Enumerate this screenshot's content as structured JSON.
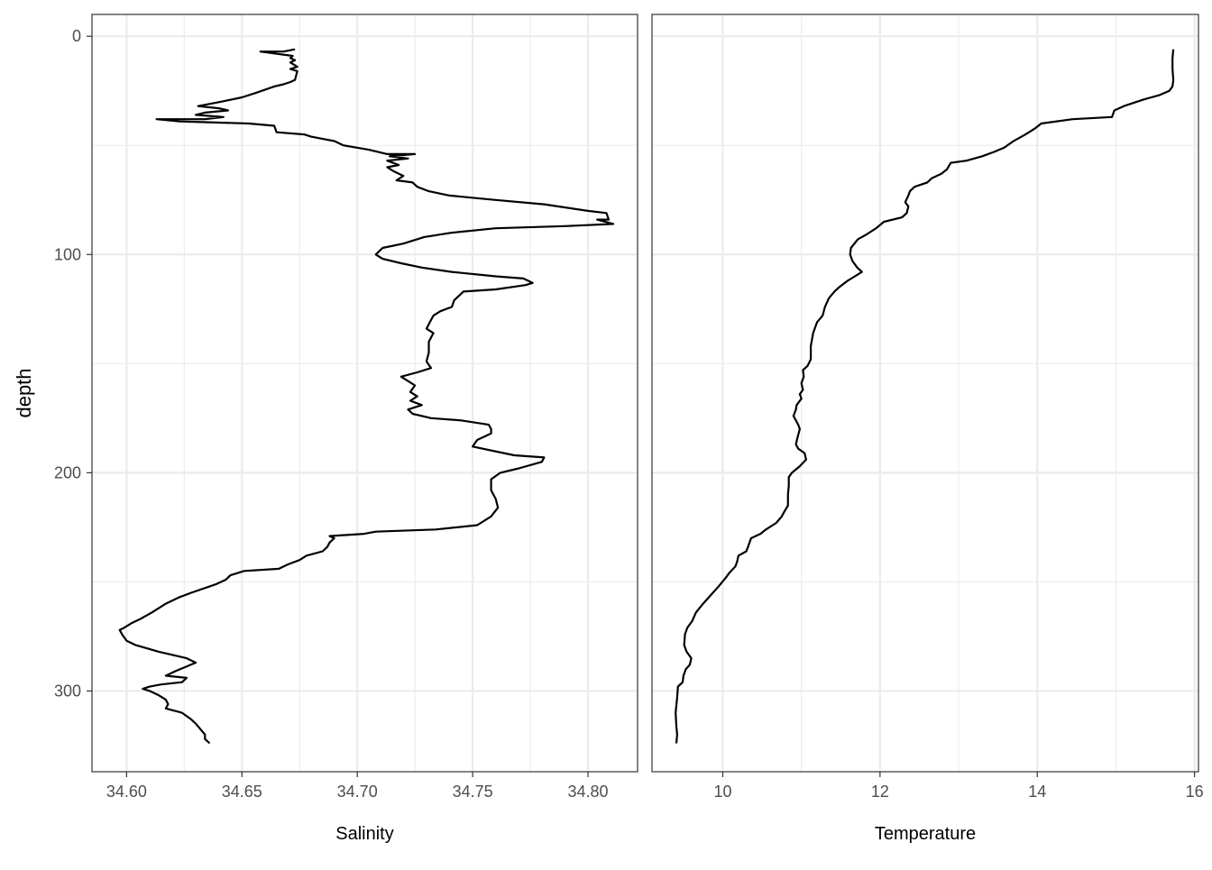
{
  "chart_data": {
    "type": "line",
    "orientation": "vertical-profile",
    "shared_y": {
      "label": "depth",
      "reversed": true,
      "ylim": [
        -10,
        337
      ],
      "major_ticks": [
        0,
        100,
        200,
        300
      ],
      "minor_ticks": [
        50,
        150,
        250
      ],
      "tick_labels": [
        "0",
        "100",
        "200",
        "300"
      ]
    },
    "grid": true,
    "panels": [
      {
        "id": "salinity",
        "xlabel": "Salinity",
        "xlim": [
          34.585,
          34.8215
        ],
        "major_ticks": [
          34.6,
          34.65,
          34.7,
          34.75,
          34.8
        ],
        "minor_ticks": [
          34.625,
          34.675,
          34.725,
          34.775
        ],
        "tick_labels": [
          "34.60",
          "34.65",
          "34.70",
          "34.75",
          "34.80"
        ],
        "points": [
          [
            34.673,
            6
          ],
          [
            34.668,
            7
          ],
          [
            34.658,
            7
          ],
          [
            34.672,
            9
          ],
          [
            34.671,
            10
          ],
          [
            34.673,
            11
          ],
          [
            34.671,
            12
          ],
          [
            34.674,
            14
          ],
          [
            34.671,
            15
          ],
          [
            34.674,
            16
          ],
          [
            34.673,
            20
          ],
          [
            34.671,
            21
          ],
          [
            34.668,
            22
          ],
          [
            34.664,
            23
          ],
          [
            34.656,
            26
          ],
          [
            34.65,
            28
          ],
          [
            34.641,
            30
          ],
          [
            34.631,
            32
          ],
          [
            34.64,
            33
          ],
          [
            34.644,
            34
          ],
          [
            34.634,
            35
          ],
          [
            34.63,
            36
          ],
          [
            34.642,
            37
          ],
          [
            34.634,
            38
          ],
          [
            34.613,
            38
          ],
          [
            34.623,
            39
          ],
          [
            34.653,
            40
          ],
          [
            34.664,
            41
          ],
          [
            34.665,
            44
          ],
          [
            34.677,
            45
          ],
          [
            34.68,
            46
          ],
          [
            34.69,
            48
          ],
          [
            34.694,
            50
          ],
          [
            34.705,
            52
          ],
          [
            34.713,
            54
          ],
          [
            34.725,
            54
          ],
          [
            34.714,
            55
          ],
          [
            34.722,
            56
          ],
          [
            34.713,
            57
          ],
          [
            34.718,
            59
          ],
          [
            34.713,
            60
          ],
          [
            34.716,
            62
          ],
          [
            34.72,
            64
          ],
          [
            34.717,
            66
          ],
          [
            34.724,
            67
          ],
          [
            34.726,
            69
          ],
          [
            34.731,
            71
          ],
          [
            34.74,
            73
          ],
          [
            34.76,
            75
          ],
          [
            34.781,
            77
          ],
          [
            34.8,
            80
          ],
          [
            34.808,
            81
          ],
          [
            34.809,
            84
          ],
          [
            34.804,
            84
          ],
          [
            34.811,
            86
          ],
          [
            34.79,
            87
          ],
          [
            34.76,
            88
          ],
          [
            34.741,
            90
          ],
          [
            34.729,
            92
          ],
          [
            34.72,
            95
          ],
          [
            34.711,
            97
          ],
          [
            34.708,
            100
          ],
          [
            34.711,
            102
          ],
          [
            34.719,
            104
          ],
          [
            34.728,
            106
          ],
          [
            34.741,
            108
          ],
          [
            34.76,
            110
          ],
          [
            34.772,
            111
          ],
          [
            34.776,
            113
          ],
          [
            34.773,
            114
          ],
          [
            34.76,
            116
          ],
          [
            34.746,
            117
          ],
          [
            34.744,
            119
          ],
          [
            34.742,
            121
          ],
          [
            34.741,
            124
          ],
          [
            34.736,
            126
          ],
          [
            34.733,
            128
          ],
          [
            34.732,
            130
          ],
          [
            34.73,
            134
          ],
          [
            34.733,
            136
          ],
          [
            34.731,
            140
          ],
          [
            34.731,
            145
          ],
          [
            34.73,
            149
          ],
          [
            34.732,
            152
          ],
          [
            34.726,
            154
          ],
          [
            34.719,
            156
          ],
          [
            34.722,
            158
          ],
          [
            34.725,
            160
          ],
          [
            34.723,
            163
          ],
          [
            34.726,
            165
          ],
          [
            34.723,
            167
          ],
          [
            34.728,
            169
          ],
          [
            34.722,
            171
          ],
          [
            34.724,
            173
          ],
          [
            34.732,
            175
          ],
          [
            34.745,
            176
          ],
          [
            34.757,
            178
          ],
          [
            34.758,
            180
          ],
          [
            34.758,
            182
          ],
          [
            34.752,
            185
          ],
          [
            34.75,
            188
          ],
          [
            34.768,
            192
          ],
          [
            34.781,
            193
          ],
          [
            34.78,
            195
          ],
          [
            34.77,
            198
          ],
          [
            34.762,
            200
          ],
          [
            34.758,
            203
          ],
          [
            34.758,
            208
          ],
          [
            34.76,
            212
          ],
          [
            34.761,
            216
          ],
          [
            34.758,
            220
          ],
          [
            34.752,
            224
          ],
          [
            34.734,
            226
          ],
          [
            34.708,
            227
          ],
          [
            34.703,
            228
          ],
          [
            34.688,
            229
          ],
          [
            34.69,
            230
          ],
          [
            34.688,
            232
          ],
          [
            34.687,
            234
          ],
          [
            34.685,
            236
          ],
          [
            34.678,
            238
          ],
          [
            34.675,
            240
          ],
          [
            34.67,
            242
          ],
          [
            34.666,
            244
          ],
          [
            34.651,
            245
          ],
          [
            34.645,
            247
          ],
          [
            34.643,
            249
          ],
          [
            34.639,
            251
          ],
          [
            34.628,
            255
          ],
          [
            34.623,
            257
          ],
          [
            34.617,
            260
          ],
          [
            34.611,
            264
          ],
          [
            34.606,
            267
          ],
          [
            34.602,
            269
          ],
          [
            34.599,
            271
          ],
          [
            34.597,
            272
          ],
          [
            34.598,
            274
          ],
          [
            34.6,
            277
          ],
          [
            34.604,
            279
          ],
          [
            34.614,
            282
          ],
          [
            34.626,
            285
          ],
          [
            34.63,
            287
          ],
          [
            34.621,
            291
          ],
          [
            34.617,
            293
          ],
          [
            34.626,
            294
          ],
          [
            34.624,
            296
          ],
          [
            34.615,
            297
          ],
          [
            34.61,
            298
          ],
          [
            34.607,
            299
          ],
          [
            34.61,
            300
          ],
          [
            34.614,
            302
          ],
          [
            34.617,
            304
          ],
          [
            34.618,
            306
          ],
          [
            34.617,
            308
          ],
          [
            34.624,
            310
          ],
          [
            34.628,
            313
          ],
          [
            34.63,
            315
          ],
          [
            34.634,
            320
          ],
          [
            34.634,
            322
          ],
          [
            34.636,
            324
          ]
        ]
      },
      {
        "id": "temperature",
        "xlabel": "Temperature",
        "xlim": [
          9.1,
          16.05
        ],
        "major_ticks": [
          10,
          12,
          14,
          16
        ],
        "minor_ticks": [
          11,
          13,
          15
        ],
        "tick_labels": [
          "10",
          "12",
          "14",
          "16"
        ],
        "points": [
          [
            15.73,
            6
          ],
          [
            15.72,
            10
          ],
          [
            15.72,
            15
          ],
          [
            15.73,
            20
          ],
          [
            15.72,
            23
          ],
          [
            15.68,
            25
          ],
          [
            15.55,
            27
          ],
          [
            15.35,
            29
          ],
          [
            15.1,
            32
          ],
          [
            14.98,
            34
          ],
          [
            14.95,
            37
          ],
          [
            14.45,
            38
          ],
          [
            14.05,
            40
          ],
          [
            13.98,
            42
          ],
          [
            13.85,
            45
          ],
          [
            13.7,
            48
          ],
          [
            13.58,
            51
          ],
          [
            13.45,
            53
          ],
          [
            13.3,
            55
          ],
          [
            13.1,
            57
          ],
          [
            12.9,
            58
          ],
          [
            12.85,
            61
          ],
          [
            12.78,
            63
          ],
          [
            12.66,
            65
          ],
          [
            12.6,
            67
          ],
          [
            12.44,
            69
          ],
          [
            12.38,
            71
          ],
          [
            12.36,
            73
          ],
          [
            12.32,
            76
          ],
          [
            12.36,
            78
          ],
          [
            12.34,
            81
          ],
          [
            12.28,
            83
          ],
          [
            12.05,
            85
          ],
          [
            11.95,
            88
          ],
          [
            11.82,
            91
          ],
          [
            11.72,
            93
          ],
          [
            11.63,
            97
          ],
          [
            11.62,
            100
          ],
          [
            11.65,
            103
          ],
          [
            11.71,
            106
          ],
          [
            11.77,
            108
          ],
          [
            11.68,
            110
          ],
          [
            11.59,
            112
          ],
          [
            11.48,
            115
          ],
          [
            11.42,
            117
          ],
          [
            11.35,
            120
          ],
          [
            11.3,
            124
          ],
          [
            11.27,
            128
          ],
          [
            11.2,
            131
          ],
          [
            11.15,
            136
          ],
          [
            11.12,
            142
          ],
          [
            11.12,
            148
          ],
          [
            11.08,
            151
          ],
          [
            11.02,
            153
          ],
          [
            11.03,
            156
          ],
          [
            11.0,
            159
          ],
          [
            11.02,
            162
          ],
          [
            10.98,
            164
          ],
          [
            11.0,
            166
          ],
          [
            10.94,
            169
          ],
          [
            10.93,
            171
          ],
          [
            10.9,
            174
          ],
          [
            10.93,
            176
          ],
          [
            10.96,
            178
          ],
          [
            10.98,
            180
          ],
          [
            10.95,
            184
          ],
          [
            10.93,
            187
          ],
          [
            10.96,
            189
          ],
          [
            11.04,
            191
          ],
          [
            11.06,
            194
          ],
          [
            10.98,
            197
          ],
          [
            10.88,
            200
          ],
          [
            10.84,
            202
          ],
          [
            10.84,
            206
          ],
          [
            10.83,
            210
          ],
          [
            10.83,
            215
          ],
          [
            10.78,
            218
          ],
          [
            10.75,
            220
          ],
          [
            10.68,
            223
          ],
          [
            10.55,
            226
          ],
          [
            10.48,
            228
          ],
          [
            10.36,
            230
          ],
          [
            10.32,
            234
          ],
          [
            10.3,
            236
          ],
          [
            10.2,
            238
          ],
          [
            10.18,
            241
          ],
          [
            10.16,
            243
          ],
          [
            10.08,
            246
          ],
          [
            10.04,
            248
          ],
          [
            9.95,
            252
          ],
          [
            9.85,
            256
          ],
          [
            9.75,
            260
          ],
          [
            9.66,
            264
          ],
          [
            9.61,
            268
          ],
          [
            9.55,
            271
          ],
          [
            9.52,
            274
          ],
          [
            9.51,
            279
          ],
          [
            9.54,
            282
          ],
          [
            9.6,
            285
          ],
          [
            9.58,
            288
          ],
          [
            9.53,
            290
          ],
          [
            9.5,
            293
          ],
          [
            9.49,
            296
          ],
          [
            9.43,
            298
          ],
          [
            9.42,
            303
          ],
          [
            9.4,
            310
          ],
          [
            9.41,
            316
          ],
          [
            9.42,
            320
          ],
          [
            9.41,
            324
          ]
        ]
      }
    ]
  }
}
